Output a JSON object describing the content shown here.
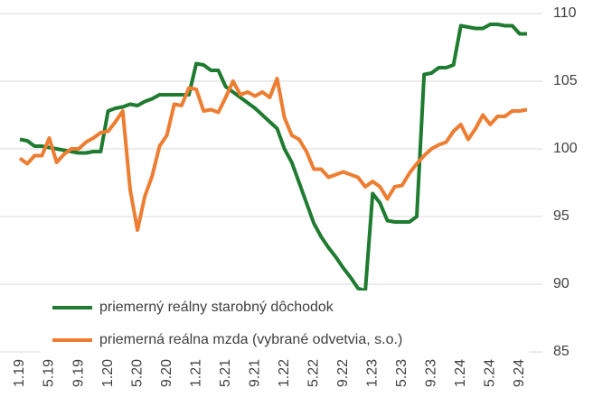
{
  "chart_data": {
    "type": "line",
    "categories": [
      "1.19",
      null,
      null,
      null,
      "5.19",
      null,
      null,
      null,
      "9.19",
      null,
      null,
      null,
      "1.20",
      null,
      null,
      null,
      "5.20",
      null,
      null,
      null,
      "9.20",
      null,
      null,
      null,
      "1.21",
      null,
      null,
      null,
      "5.21",
      null,
      null,
      null,
      "9.21",
      null,
      null,
      null,
      "1.22",
      null,
      null,
      null,
      "5.22",
      null,
      null,
      null,
      "9.22",
      null,
      null,
      null,
      "1.23",
      null,
      null,
      null,
      "5.23",
      null,
      null,
      null,
      "9.23",
      null,
      null,
      null,
      "1.24",
      null,
      null,
      null,
      "5.24",
      null,
      null,
      null,
      "9.24",
      null
    ],
    "series": [
      {
        "name": "priemerný reálny starobný dôchodok",
        "color": "#1e7b30",
        "values": [
          100.7,
          100.6,
          100.2,
          100.2,
          100.1,
          100,
          99.9,
          99.8,
          99.7,
          99.7,
          99.8,
          99.8,
          102.8,
          103,
          103.1,
          103.3,
          103.2,
          103.5,
          103.7,
          104,
          104,
          104,
          104,
          104,
          106.3,
          106.2,
          105.8,
          105.8,
          104.6,
          104.2,
          103.8,
          103.4,
          103,
          102.5,
          102,
          101.5,
          100,
          99,
          97.5,
          96,
          94.5,
          93.5,
          92.7,
          92,
          91.2,
          90.5,
          89.7,
          89.5,
          96.7,
          96,
          94.7,
          94.6,
          94.6,
          94.6,
          95,
          105.5,
          105.6,
          106,
          106,
          106.2,
          109.1,
          109,
          108.9,
          108.9,
          109.2,
          109.2,
          109.1,
          109.1,
          108.5,
          108.5
        ]
      },
      {
        "name": "priemerná reálna mzda (vybrané odvetvia, s.o.)",
        "color": "#ed7d31",
        "values": [
          99.3,
          98.9,
          99.5,
          99.5,
          100.8,
          99,
          99.6,
          100,
          100,
          100.5,
          100.8,
          101.2,
          101.3,
          102,
          102.8,
          97,
          94,
          96.5,
          98,
          100.2,
          101,
          103.3,
          103.2,
          104.5,
          104.4,
          102.8,
          102.9,
          102.7,
          103.8,
          105,
          104,
          104.2,
          103.9,
          104.2,
          103.8,
          105.2,
          102.3,
          101,
          100.7,
          99.8,
          98.5,
          98.5,
          97.9,
          98.1,
          98.3,
          98.1,
          97.9,
          97.2,
          97.6,
          97.2,
          96.3,
          97.2,
          97.3,
          98.2,
          98.9,
          99.5,
          100,
          100.3,
          100.5,
          101.3,
          101.8,
          100.7,
          101.5,
          102.5,
          101.8,
          102.4,
          102.4,
          102.8,
          102.8,
          102.9
        ]
      }
    ],
    "ylim": [
      85,
      110
    ],
    "yticks": [
      85,
      90,
      95,
      100,
      105,
      110
    ],
    "grid": true,
    "legend": "lower left"
  }
}
